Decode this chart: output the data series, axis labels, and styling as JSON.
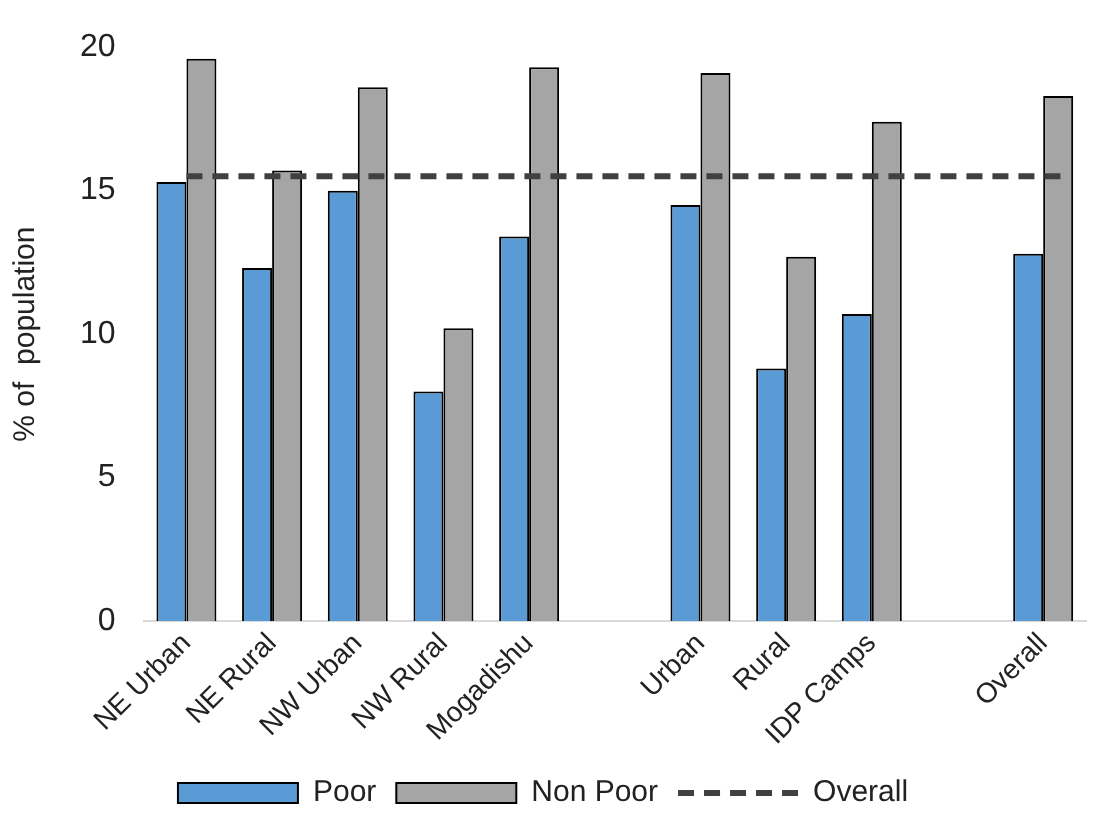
{
  "chart_data": {
    "type": "bar",
    "ylabel": "% of  population",
    "categories": [
      "NE Urban",
      "NE Rural",
      "NW Urban",
      "NW Rural",
      "Mogadishu",
      null,
      "Urban",
      "Rural",
      "IDP Camps",
      null,
      "Overall"
    ],
    "series": [
      {
        "name": "Poor",
        "color": "#5b9bd5",
        "values": [
          15.3,
          12.3,
          15.0,
          8.0,
          13.4,
          null,
          14.5,
          8.8,
          10.7,
          null,
          12.8
        ]
      },
      {
        "name": "Non Poor",
        "color": "#a5a5a5",
        "values": [
          19.6,
          15.7,
          18.6,
          10.2,
          19.3,
          null,
          19.1,
          12.7,
          17.4,
          null,
          18.3
        ]
      }
    ],
    "ref_lines": [
      {
        "axis": "y",
        "value": 15.5,
        "label": "Overall",
        "color": "#404040",
        "line_style": "dashed"
      }
    ],
    "ylim": [
      0,
      20
    ],
    "yticks": [
      0,
      5,
      10,
      15,
      20
    ],
    "grid": false,
    "legend": "bottom"
  }
}
